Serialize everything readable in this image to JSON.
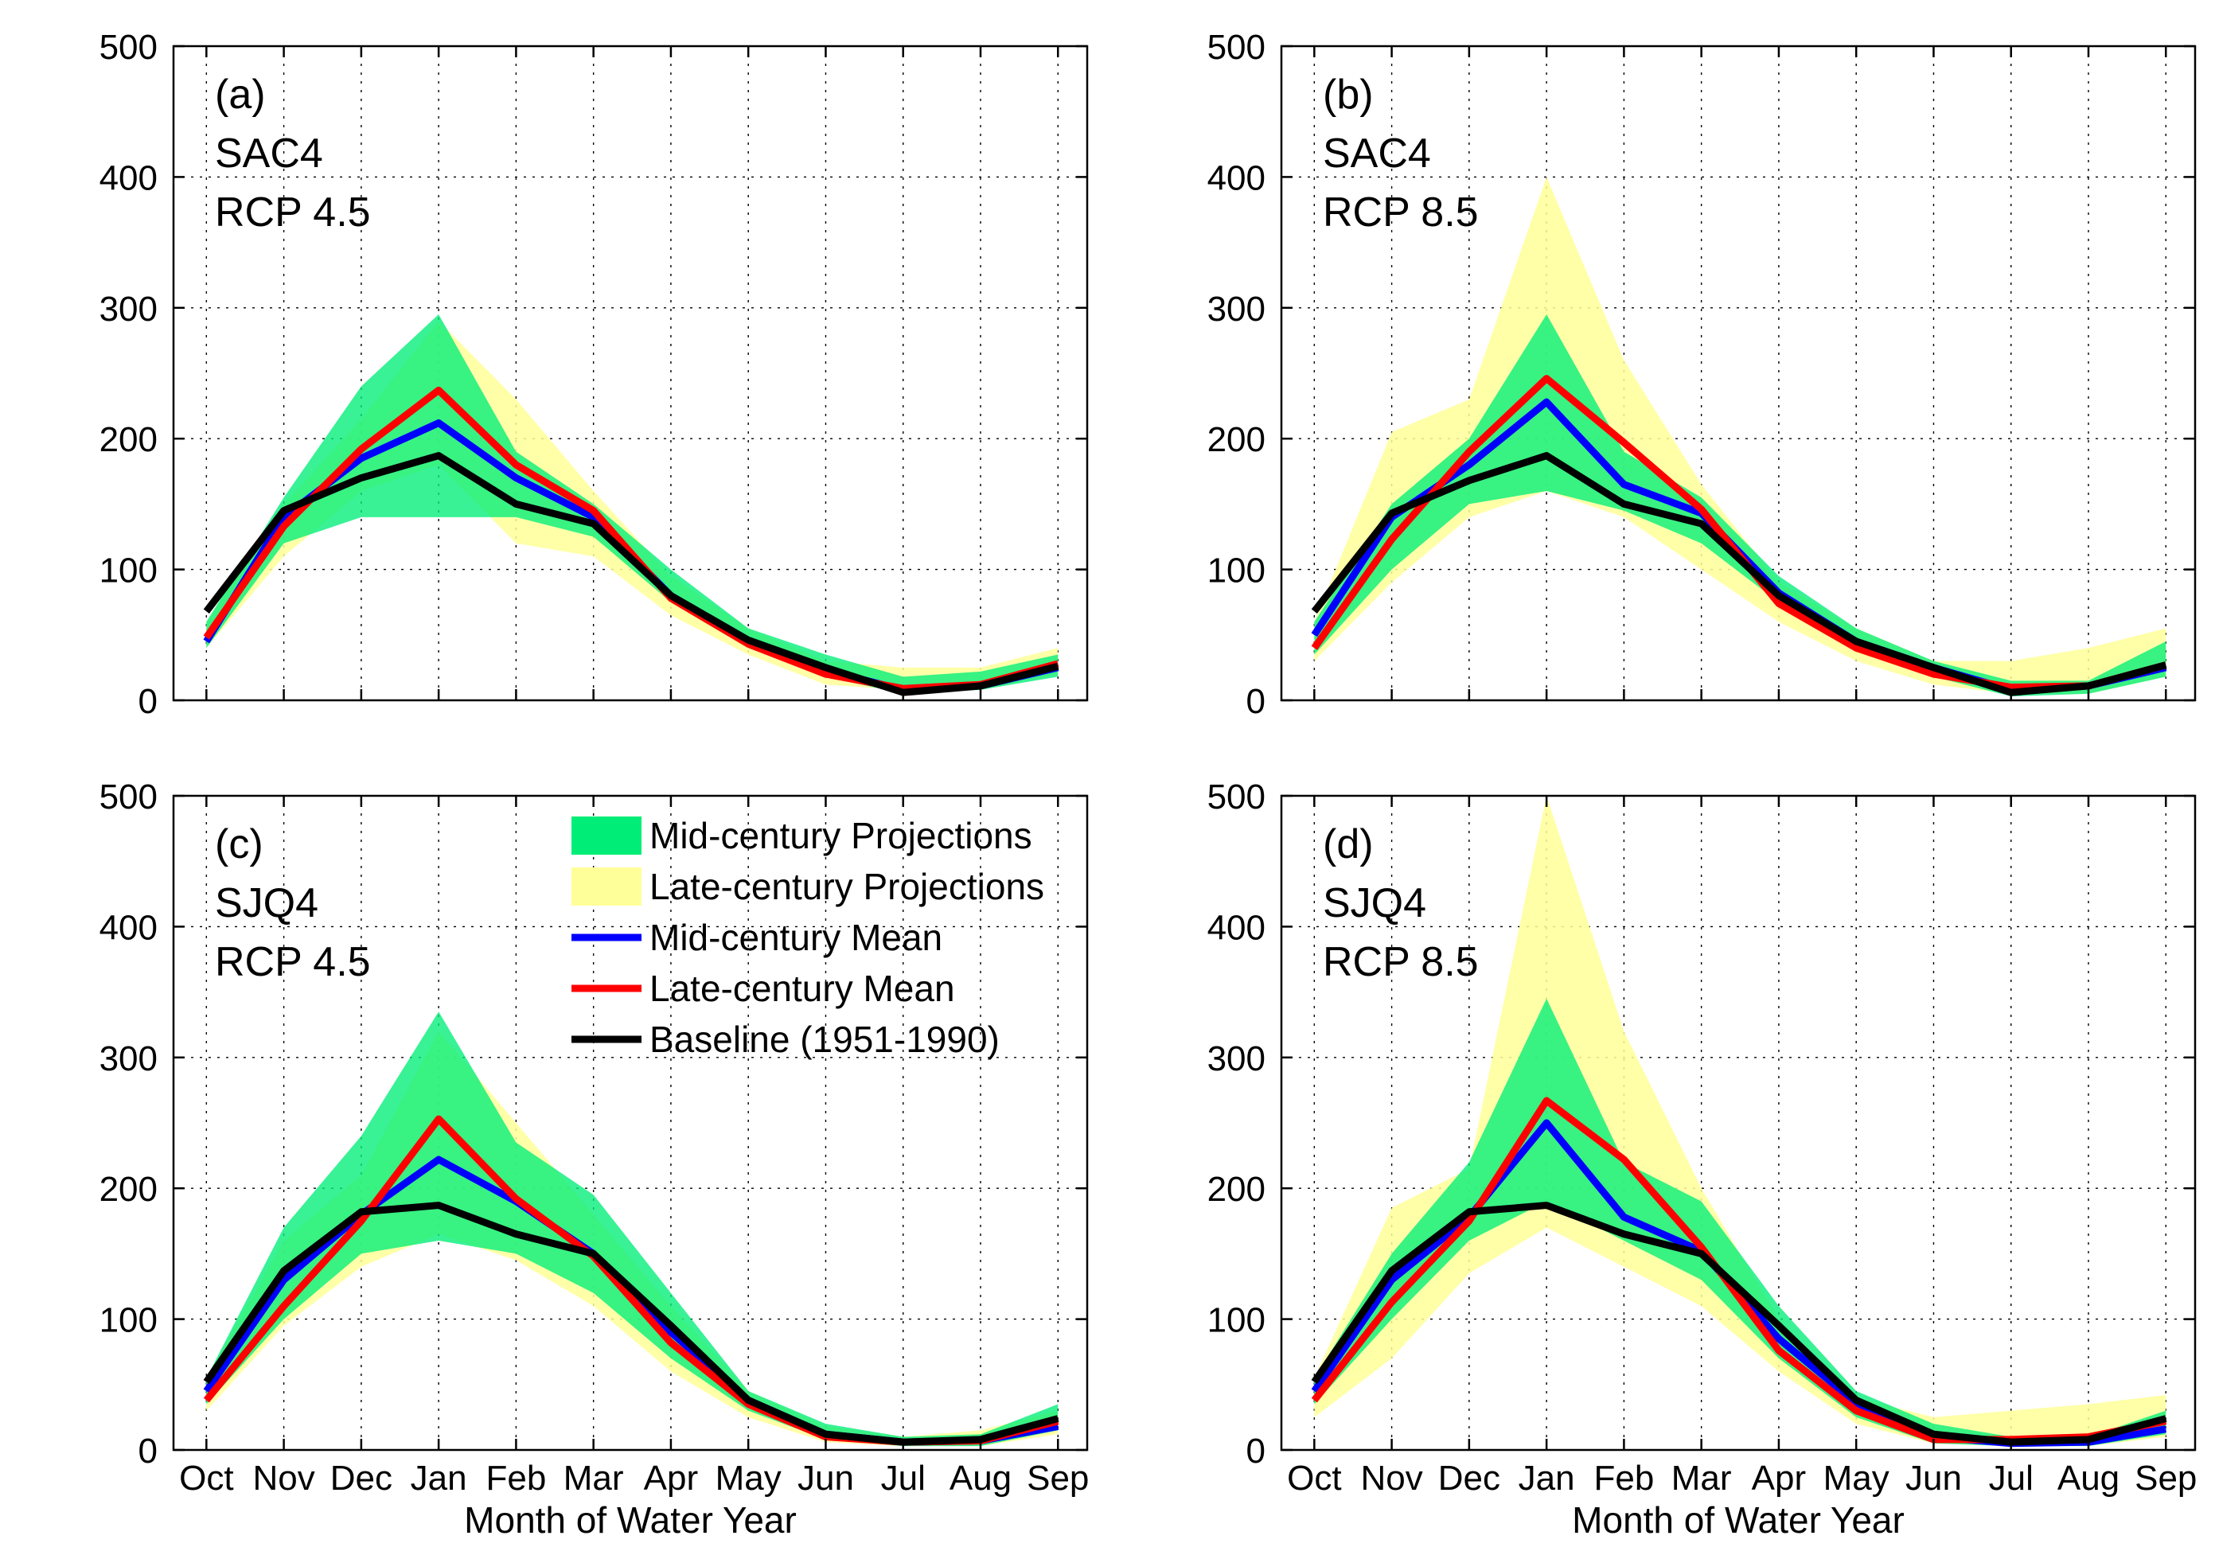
{
  "chart_data": [
    {
      "type": "line",
      "panel_label": "(a)",
      "region": "SAC4",
      "scenario": "RCP 4.5",
      "x": [
        "Oct",
        "Nov",
        "Dec",
        "Jan",
        "Feb",
        "Mar",
        "Apr",
        "May",
        "Jun",
        "Jul",
        "Aug",
        "Sep"
      ],
      "xlabel": "",
      "ylabel": "",
      "ylim": [
        0,
        500
      ],
      "yticks": [
        0,
        100,
        200,
        300,
        400,
        500
      ],
      "grid": true,
      "series": [
        {
          "name": "Mid-century Projections",
          "kind": "band",
          "color": "#00ee77",
          "lower": [
            40,
            120,
            140,
            140,
            140,
            125,
            75,
            40,
            18,
            5,
            8,
            18
          ],
          "upper": [
            60,
            155,
            240,
            295,
            190,
            150,
            100,
            55,
            35,
            18,
            22,
            35
          ]
        },
        {
          "name": "Late-century Projections",
          "kind": "band",
          "color": "#ffff99",
          "lower": [
            40,
            110,
            160,
            180,
            120,
            110,
            65,
            35,
            12,
            8,
            8,
            20
          ],
          "upper": [
            60,
            150,
            215,
            290,
            230,
            160,
            95,
            55,
            30,
            25,
            25,
            40
          ]
        },
        {
          "name": "Mid-century Mean",
          "kind": "line",
          "color": "#0000ff",
          "values": [
            45,
            140,
            185,
            212,
            170,
            140,
            80,
            45,
            23,
            8,
            11,
            25
          ]
        },
        {
          "name": "Late-century Mean",
          "kind": "line",
          "color": "#ff0000",
          "values": [
            48,
            133,
            192,
            237,
            180,
            145,
            78,
            43,
            20,
            9,
            12,
            28
          ]
        },
        {
          "name": "Baseline (1951-1990)",
          "kind": "line",
          "color": "#000000",
          "values": [
            68,
            145,
            170,
            187,
            150,
            135,
            80,
            46,
            25,
            6,
            11,
            26
          ]
        }
      ]
    },
    {
      "type": "line",
      "panel_label": "(b)",
      "region": "SAC4",
      "scenario": "RCP 8.5",
      "x": [
        "Oct",
        "Nov",
        "Dec",
        "Jan",
        "Feb",
        "Mar",
        "Apr",
        "May",
        "Jun",
        "Jul",
        "Aug",
        "Sep"
      ],
      "xlabel": "",
      "ylabel": "",
      "ylim": [
        0,
        500
      ],
      "yticks": [
        0,
        100,
        200,
        300,
        400,
        500
      ],
      "grid": true,
      "series": [
        {
          "name": "Mid-century Projections",
          "kind": "band",
          "color": "#00ee77",
          "lower": [
            35,
            100,
            150,
            160,
            145,
            120,
            75,
            38,
            18,
            3,
            5,
            18
          ],
          "upper": [
            60,
            150,
            200,
            295,
            190,
            155,
            95,
            55,
            30,
            15,
            15,
            45
          ]
        },
        {
          "name": "Late-century Projections",
          "kind": "band",
          "color": "#ffff99",
          "lower": [
            30,
            90,
            140,
            160,
            140,
            100,
            60,
            30,
            12,
            5,
            5,
            18
          ],
          "upper": [
            60,
            205,
            230,
            400,
            260,
            165,
            90,
            55,
            30,
            30,
            40,
            55
          ]
        },
        {
          "name": "Mid-century Mean",
          "kind": "line",
          "color": "#0000ff",
          "values": [
            50,
            140,
            180,
            228,
            165,
            143,
            82,
            45,
            25,
            8,
            11,
            25
          ]
        },
        {
          "name": "Late-century Mean",
          "kind": "line",
          "color": "#ff0000",
          "values": [
            40,
            123,
            190,
            246,
            197,
            146,
            74,
            40,
            20,
            10,
            11,
            27
          ]
        },
        {
          "name": "Baseline (1951-1990)",
          "kind": "line",
          "color": "#000000",
          "values": [
            68,
            143,
            168,
            187,
            150,
            135,
            80,
            45,
            25,
            6,
            11,
            27
          ]
        }
      ]
    },
    {
      "type": "line",
      "panel_label": "(c)",
      "region": "SJQ4",
      "scenario": "RCP 4.5",
      "x": [
        "Oct",
        "Nov",
        "Dec",
        "Jan",
        "Feb",
        "Mar",
        "Apr",
        "May",
        "Jun",
        "Jul",
        "Aug",
        "Sep"
      ],
      "xlabel": "Month of Water Year",
      "ylabel": "",
      "ylim": [
        0,
        500
      ],
      "yticks": [
        0,
        100,
        200,
        300,
        400,
        500
      ],
      "grid": true,
      "series": [
        {
          "name": "Mid-century Projections",
          "kind": "band",
          "color": "#00ee77",
          "lower": [
            35,
            100,
            150,
            160,
            150,
            120,
            70,
            30,
            8,
            3,
            3,
            15
          ],
          "upper": [
            55,
            170,
            240,
            335,
            235,
            195,
            120,
            45,
            20,
            10,
            12,
            35
          ]
        },
        {
          "name": "Late-century Projections",
          "kind": "band",
          "color": "#ffff99",
          "lower": [
            30,
            95,
            140,
            165,
            145,
            110,
            60,
            25,
            6,
            3,
            3,
            12
          ],
          "upper": [
            55,
            160,
            210,
            320,
            250,
            180,
            110,
            45,
            18,
            10,
            15,
            30
          ]
        },
        {
          "name": "Mid-century Mean",
          "kind": "line",
          "color": "#0000ff",
          "values": [
            45,
            130,
            180,
            222,
            190,
            150,
            90,
            38,
            12,
            6,
            7,
            18
          ]
        },
        {
          "name": "Late-century Mean",
          "kind": "line",
          "color": "#ff0000",
          "values": [
            38,
            110,
            175,
            253,
            192,
            148,
            82,
            35,
            10,
            6,
            7,
            22
          ]
        },
        {
          "name": "Baseline (1951-1990)",
          "kind": "line",
          "color": "#000000",
          "values": [
            52,
            137,
            182,
            187,
            165,
            150,
            95,
            38,
            12,
            6,
            8,
            24
          ]
        }
      ]
    },
    {
      "type": "line",
      "panel_label": "(d)",
      "region": "SJQ4",
      "scenario": "RCP 8.5",
      "x": [
        "Oct",
        "Nov",
        "Dec",
        "Jan",
        "Feb",
        "Mar",
        "Apr",
        "May",
        "Jun",
        "Jul",
        "Aug",
        "Sep"
      ],
      "xlabel": "Month of Water Year",
      "ylabel": "",
      "ylim": [
        0,
        500
      ],
      "yticks": [
        0,
        100,
        200,
        300,
        400,
        500
      ],
      "grid": true,
      "series": [
        {
          "name": "Mid-century Projections",
          "kind": "band",
          "color": "#00ee77",
          "lower": [
            35,
            100,
            160,
            190,
            160,
            130,
            70,
            25,
            5,
            3,
            3,
            12
          ],
          "upper": [
            55,
            150,
            220,
            345,
            220,
            190,
            110,
            45,
            20,
            10,
            10,
            30
          ]
        },
        {
          "name": "Late-century Projections",
          "kind": "band",
          "color": "#ffff99",
          "lower": [
            25,
            70,
            135,
            170,
            140,
            110,
            60,
            20,
            5,
            3,
            3,
            10
          ],
          "upper": [
            55,
            185,
            215,
            500,
            320,
            200,
            100,
            40,
            25,
            30,
            35,
            42
          ]
        },
        {
          "name": "Mid-century Mean",
          "kind": "line",
          "color": "#0000ff",
          "values": [
            45,
            130,
            178,
            250,
            178,
            152,
            85,
            36,
            10,
            5,
            6,
            16
          ]
        },
        {
          "name": "Late-century Mean",
          "kind": "line",
          "color": "#ff0000",
          "values": [
            38,
            113,
            175,
            267,
            222,
            155,
            76,
            30,
            8,
            8,
            10,
            22
          ]
        },
        {
          "name": "Baseline (1951-1990)",
          "kind": "line",
          "color": "#000000",
          "values": [
            52,
            137,
            182,
            187,
            165,
            150,
            95,
            38,
            12,
            6,
            8,
            24
          ]
        }
      ]
    }
  ],
  "legend": {
    "placement": "top-right of panel (c)",
    "items": [
      {
        "label": "Mid-century Projections",
        "kind": "patch",
        "color": "#00ee77"
      },
      {
        "label": "Late-century Projections",
        "kind": "patch",
        "color": "#ffff99"
      },
      {
        "label": "Mid-century Mean",
        "kind": "line",
        "color": "#0000ff"
      },
      {
        "label": "Late-century Mean",
        "kind": "line",
        "color": "#ff0000"
      },
      {
        "label": "Baseline (1951-1990)",
        "kind": "line",
        "color": "#000000"
      }
    ]
  }
}
